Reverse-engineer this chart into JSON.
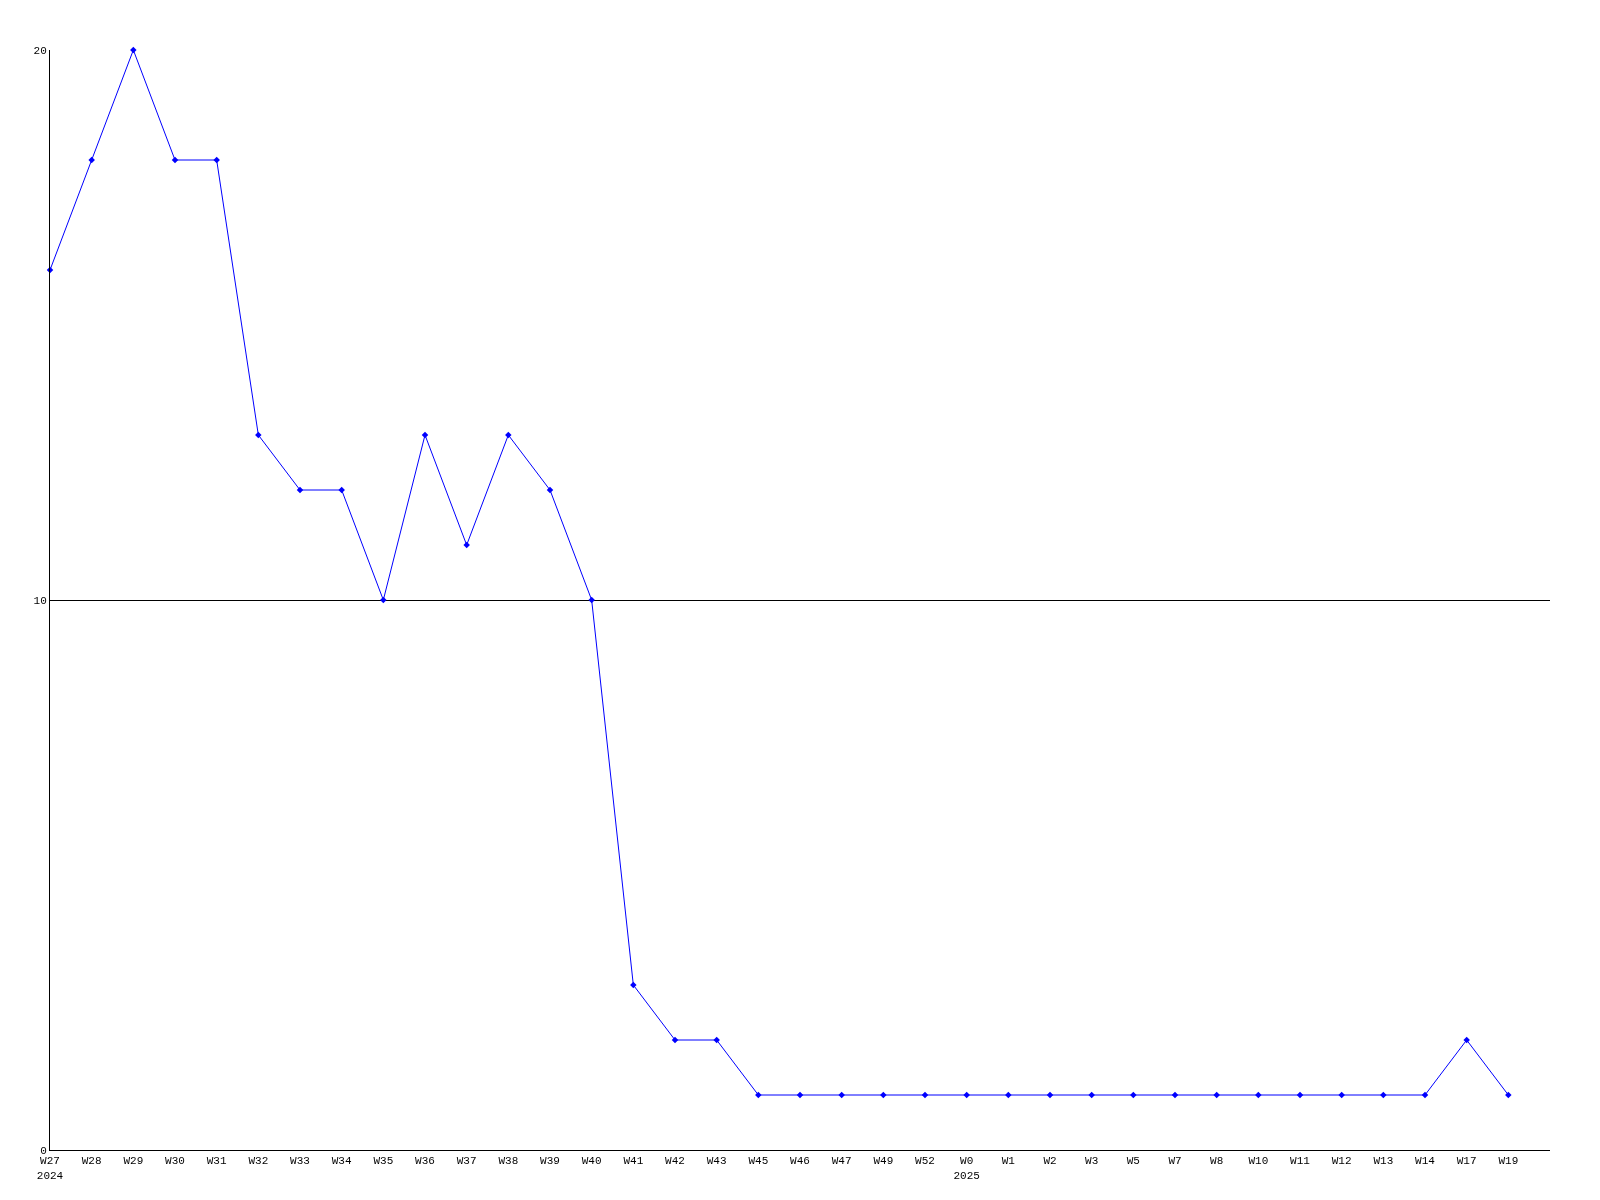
{
  "chart_data": {
    "type": "line",
    "categories": [
      "W27\n2024",
      "W28",
      "W29",
      "W30",
      "W31",
      "W32",
      "W33",
      "W34",
      "W35",
      "W36",
      "W37",
      "W38",
      "W39",
      "W40",
      "W41",
      "W42",
      "W43",
      "W45",
      "W46",
      "W47",
      "W49",
      "W52",
      "W0\n2025",
      "W1",
      "W2",
      "W3",
      "W5",
      "W7",
      "W8",
      "W10",
      "W11",
      "W12",
      "W13",
      "W14",
      "W17",
      "W19"
    ],
    "series": [
      {
        "color": "#0000ff",
        "values": [
          16,
          18,
          20,
          18,
          18,
          13,
          12,
          12,
          10,
          13,
          11,
          13,
          12,
          10,
          3,
          2,
          2,
          1,
          1,
          1,
          1,
          1,
          1,
          1,
          1,
          1,
          1,
          1,
          1,
          1,
          1,
          1,
          1,
          1,
          2,
          1
        ]
      }
    ],
    "ylim": [
      0,
      20
    ],
    "yticks": [
      0,
      10,
      20
    ],
    "grid": "y",
    "marker": "diamond",
    "line_style": "solid"
  }
}
